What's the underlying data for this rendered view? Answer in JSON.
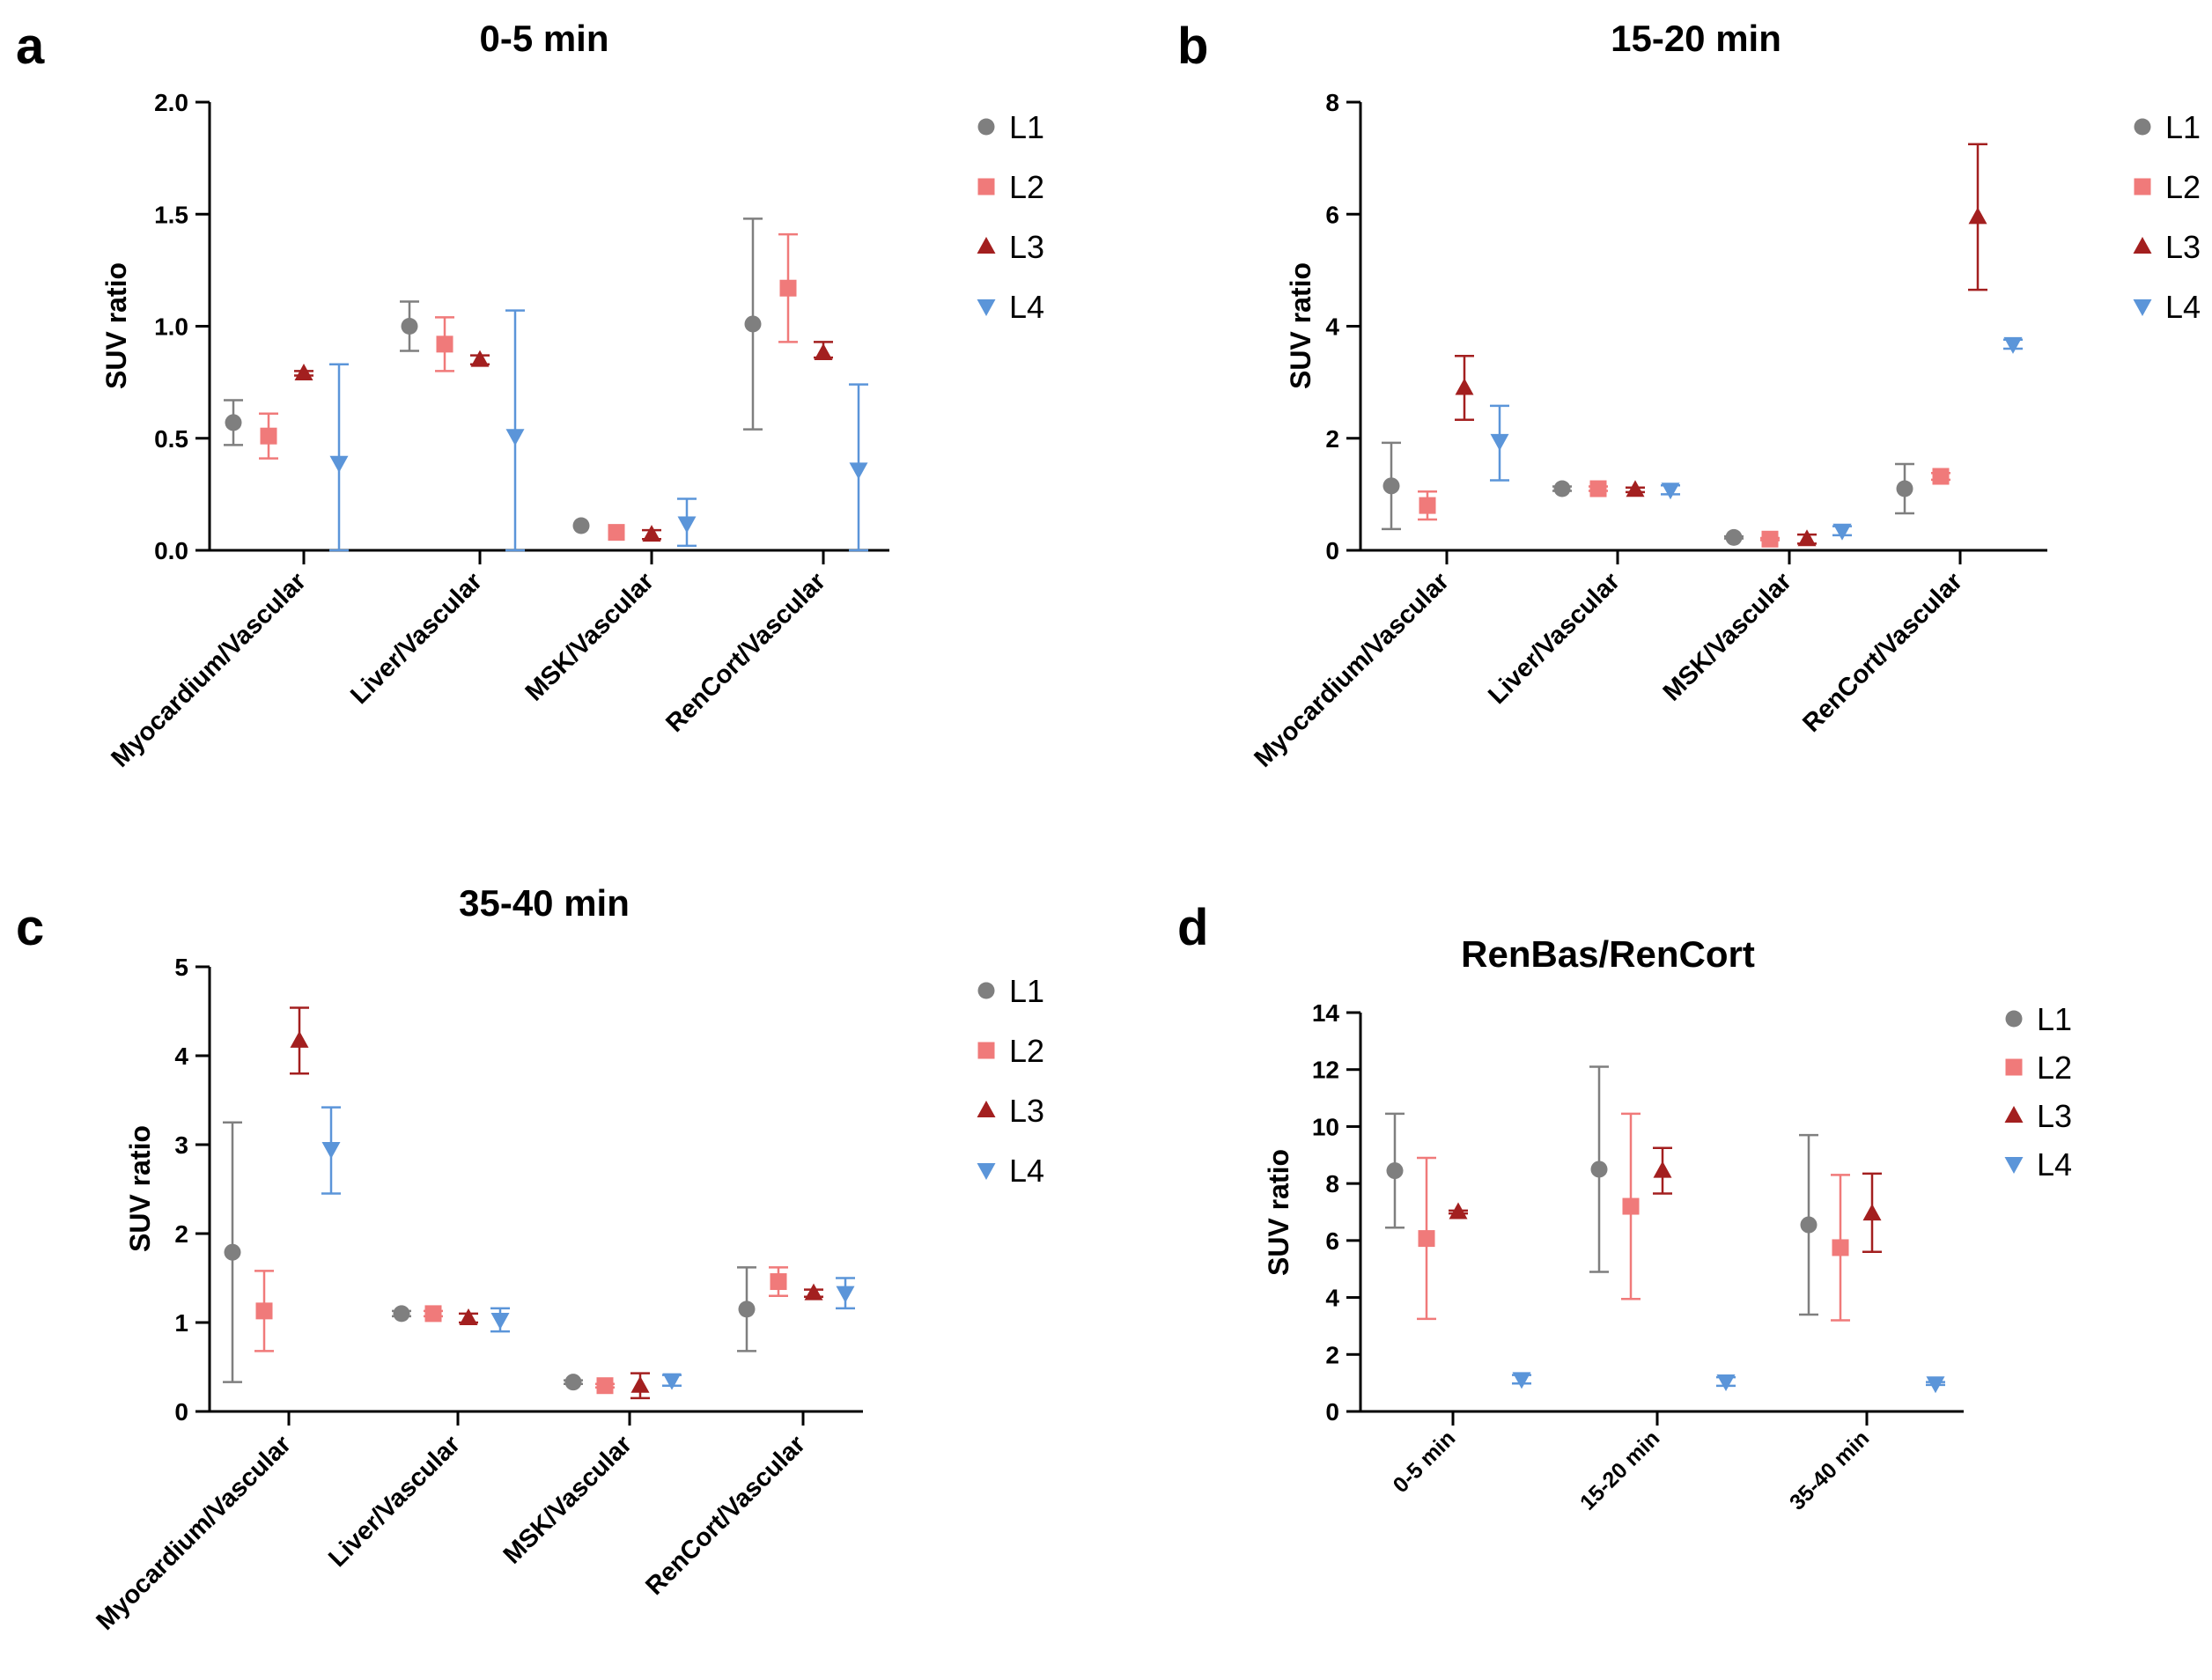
{
  "colors": {
    "L1": "#7f7f7f",
    "L2": "#f07a7a",
    "L3": "#a31f1f",
    "L4": "#5b95d9"
  },
  "chart_data": [
    {
      "panel": "a",
      "type": "scatter",
      "title": "0-5 min",
      "ylabel": "SUV ratio",
      "xlabel": "",
      "ylim": [
        0,
        2
      ],
      "yticks": [
        "0.0",
        "0.5",
        "1.0",
        "1.5",
        "2.0"
      ],
      "categories": [
        "Myocardium/Vascular",
        "Liver/Vascular",
        "MSK/Vascular",
        "RenCort/Vascular"
      ],
      "legend": "right",
      "series": [
        {
          "name": "L1",
          "marker": "circle",
          "values": [
            0.57,
            1.0,
            0.11,
            1.01
          ],
          "err_low": [
            0.47,
            0.89,
            0.11,
            0.54
          ],
          "err_high": [
            0.67,
            1.11,
            0.11,
            1.48
          ]
        },
        {
          "name": "L2",
          "marker": "square",
          "values": [
            0.51,
            0.92,
            0.08,
            1.17
          ],
          "err_low": [
            0.41,
            0.8,
            0.08,
            0.93
          ],
          "err_high": [
            0.61,
            1.04,
            0.08,
            1.41
          ]
        },
        {
          "name": "L3",
          "marker": "triangle-up",
          "values": [
            0.79,
            0.85,
            0.07,
            0.88
          ],
          "err_low": [
            0.78,
            0.83,
            0.05,
            0.86
          ],
          "err_high": [
            0.8,
            0.87,
            0.09,
            0.93
          ]
        },
        {
          "name": "L4",
          "marker": "triangle-down",
          "values": [
            0.39,
            0.51,
            0.12,
            0.36
          ],
          "err_low": [
            0.0,
            0.0,
            0.02,
            0.0
          ],
          "err_high": [
            0.83,
            1.07,
            0.23,
            0.74
          ]
        }
      ]
    },
    {
      "panel": "b",
      "type": "scatter",
      "title": "15-20 min",
      "ylabel": "SUV ratio",
      "xlabel": "",
      "ylim": [
        0,
        8
      ],
      "yticks": [
        "0",
        "2",
        "4",
        "6",
        "8"
      ],
      "categories": [
        "Myocardium/Vascular",
        "Liver/Vascular",
        "MSK/Vascular",
        "RenCort/Vascular"
      ],
      "legend": "right",
      "series": [
        {
          "name": "L1",
          "marker": "circle",
          "values": [
            1.15,
            1.1,
            0.23,
            1.1
          ],
          "err_low": [
            0.38,
            1.06,
            0.21,
            0.66
          ],
          "err_high": [
            1.92,
            1.14,
            0.25,
            1.54
          ]
        },
        {
          "name": "L2",
          "marker": "square",
          "values": [
            0.8,
            1.1,
            0.2,
            1.32
          ],
          "err_low": [
            0.55,
            1.06,
            0.18,
            1.26
          ],
          "err_high": [
            1.05,
            1.14,
            0.22,
            1.38
          ]
        },
        {
          "name": "L3",
          "marker": "triangle-up",
          "values": [
            2.9,
            1.08,
            0.2,
            5.95
          ],
          "err_low": [
            2.33,
            1.04,
            0.12,
            4.65
          ],
          "err_high": [
            3.47,
            1.12,
            0.28,
            7.25
          ]
        },
        {
          "name": "L4",
          "marker": "triangle-down",
          "values": [
            1.95,
            1.08,
            0.35,
            3.68
          ],
          "err_low": [
            1.25,
            1.0,
            0.27,
            3.6
          ],
          "err_high": [
            2.58,
            1.16,
            0.43,
            3.76
          ]
        }
      ]
    },
    {
      "panel": "c",
      "type": "scatter",
      "title": "35-40 min",
      "ylabel": "SUV ratio",
      "xlabel": "",
      "ylim": [
        0,
        5
      ],
      "yticks": [
        "0",
        "1",
        "2",
        "3",
        "4",
        "5"
      ],
      "categories": [
        "Myocardium/Vascular",
        "Liver/Vascular",
        "MSK/Vascular",
        "RenCort/Vascular"
      ],
      "legend": "right",
      "series": [
        {
          "name": "L1",
          "marker": "circle",
          "values": [
            1.79,
            1.1,
            0.33,
            1.15
          ],
          "err_low": [
            0.33,
            1.07,
            0.31,
            0.68
          ],
          "err_high": [
            3.25,
            1.13,
            0.35,
            1.62
          ]
        },
        {
          "name": "L2",
          "marker": "square",
          "values": [
            1.13,
            1.1,
            0.29,
            1.46
          ],
          "err_low": [
            0.68,
            1.07,
            0.27,
            1.3
          ],
          "err_high": [
            1.58,
            1.13,
            0.31,
            1.62
          ]
        },
        {
          "name": "L3",
          "marker": "triangle-up",
          "values": [
            4.17,
            1.05,
            0.29,
            1.33
          ],
          "err_low": [
            3.8,
            1.0,
            0.15,
            1.29
          ],
          "err_high": [
            4.54,
            1.1,
            0.43,
            1.37
          ]
        },
        {
          "name": "L4",
          "marker": "triangle-down",
          "values": [
            2.95,
            1.03,
            0.35,
            1.33
          ],
          "err_low": [
            2.45,
            0.9,
            0.29,
            1.16
          ],
          "err_high": [
            3.42,
            1.16,
            0.41,
            1.5
          ]
        }
      ]
    },
    {
      "panel": "d",
      "type": "scatter",
      "title": "RenBas/RenCort",
      "ylabel": "SUV ratio",
      "xlabel": "",
      "ylim": [
        0,
        14
      ],
      "yticks": [
        "0",
        "2",
        "4",
        "6",
        "8",
        "10",
        "12",
        "14"
      ],
      "categories": [
        "0-5 min",
        "15-20 min",
        "35-40 min"
      ],
      "legend": "right",
      "series": [
        {
          "name": "L1",
          "marker": "circle",
          "values": [
            8.45,
            8.5,
            6.55
          ],
          "err_low": [
            6.45,
            4.9,
            3.4
          ],
          "err_high": [
            10.45,
            12.1,
            9.7
          ]
        },
        {
          "name": "L2",
          "marker": "square",
          "values": [
            6.07,
            7.2,
            5.75
          ],
          "err_low": [
            3.25,
            3.95,
            3.2
          ],
          "err_high": [
            8.9,
            10.45,
            8.3
          ]
        },
        {
          "name": "L3",
          "marker": "triangle-up",
          "values": [
            7.0,
            8.45,
            6.95
          ],
          "err_low": [
            6.95,
            7.65,
            5.6
          ],
          "err_high": [
            7.05,
            9.25,
            8.35
          ]
        },
        {
          "name": "L4",
          "marker": "triangle-down",
          "values": [
            1.13,
            1.05,
            0.98
          ],
          "err_low": [
            0.98,
            0.9,
            0.93
          ],
          "err_high": [
            1.28,
            1.2,
            1.03
          ]
        }
      ]
    }
  ]
}
